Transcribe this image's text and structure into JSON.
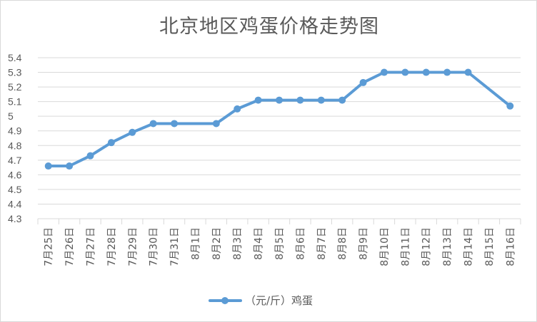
{
  "chart_data": {
    "type": "line",
    "title": "北京地区鸡蛋价格走势图",
    "xlabel": "",
    "ylabel": "",
    "ylim": [
      4.3,
      5.4
    ],
    "yticks": [
      "4.3",
      "4.4",
      "4.5",
      "4.6",
      "4.7",
      "4.8",
      "4.9",
      "5",
      "5.1",
      "5.2",
      "5.3",
      "5.4"
    ],
    "categories": [
      "7月25日",
      "7月26日",
      "7月27日",
      "7月28日",
      "7月29日",
      "7月30日",
      "7月31日",
      "8月1日",
      "8月2日",
      "8月3日",
      "8月4日",
      "8月5日",
      "8月6日",
      "8月7日",
      "8月8日",
      "8月9日",
      "8月10日",
      "8月11日",
      "8月12日",
      "8月13日",
      "8月14日",
      "8月15日",
      "8月16日"
    ],
    "series": [
      {
        "name": "（元/斤）鸡蛋",
        "color": "#5b9bd5",
        "values": [
          4.66,
          4.66,
          4.73,
          4.82,
          4.89,
          4.95,
          4.95,
          null,
          4.95,
          5.05,
          5.11,
          5.11,
          5.11,
          5.11,
          5.11,
          5.23,
          5.3,
          5.3,
          5.3,
          5.3,
          5.3,
          null,
          5.07
        ]
      }
    ],
    "grid": true,
    "legend": "bottom"
  }
}
